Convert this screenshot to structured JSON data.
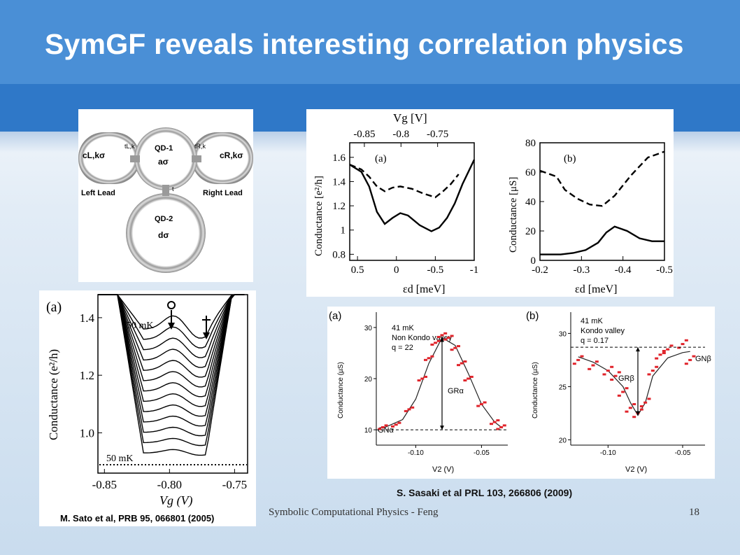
{
  "slide": {
    "title": "SymGF reveals interesting correlation physics",
    "footer_text": "Symbolic Computational Physics - Feng",
    "page_number": "18",
    "citation_sasaki": "S. Sasaki et al PRL 103, 266806 (2009)",
    "citation_sato": "M. Sato et al, PRB 95, 066801 (2005)"
  },
  "diagram": {
    "qd1_label": "QD-1",
    "qd1_op": "aσ",
    "qd2_label": "QD-2",
    "qd2_op": "dσ",
    "left_op": "cL,kσ",
    "right_op": "cR,kσ",
    "left_lead": "Left Lead",
    "right_lead": "Right Lead",
    "t_left": "tL,k",
    "t_right": "tR,k",
    "t_inter": "t"
  },
  "chart_data": [
    {
      "type": "line",
      "panel": "(a)",
      "xlabel": "εd [meV]",
      "ylabel": "Conductance [e²/h]",
      "top_axis_label": "Vg [V]",
      "top_ticks": [
        "-0.85",
        "-0.8",
        "-0.75"
      ],
      "x_ticks": [
        "0.5",
        "0",
        "-0.5",
        "-1"
      ],
      "y_ticks": [
        "0.8",
        "1",
        "1.2",
        "1.4",
        "1.6"
      ],
      "xlim": [
        0.6,
        -1.0
      ],
      "ylim": [
        0.75,
        1.72
      ],
      "series": [
        {
          "style": "solid",
          "x": [
            0.6,
            0.45,
            0.35,
            0.25,
            0.15,
            0.05,
            -0.05,
            -0.15,
            -0.3,
            -0.45,
            -0.55,
            -0.65,
            -0.75,
            -0.85,
            -1.0
          ],
          "y": [
            1.54,
            1.48,
            1.36,
            1.15,
            1.05,
            1.1,
            1.14,
            1.12,
            1.04,
            0.99,
            1.02,
            1.1,
            1.22,
            1.38,
            1.58
          ]
        },
        {
          "style": "dashed",
          "x": [
            0.6,
            0.45,
            0.35,
            0.25,
            0.15,
            0.05,
            -0.05,
            -0.2,
            -0.35,
            -0.5,
            -0.6,
            -0.7,
            -0.8
          ],
          "y": [
            1.54,
            1.5,
            1.44,
            1.36,
            1.32,
            1.35,
            1.36,
            1.34,
            1.3,
            1.27,
            1.32,
            1.38,
            1.46
          ]
        }
      ]
    },
    {
      "type": "line",
      "panel": "(b)",
      "xlabel": "εd [meV]",
      "ylabel": "Conductance [μS]",
      "x_ticks": [
        "-0.2",
        "-0.3",
        "-0.4",
        "-0.5"
      ],
      "y_ticks": [
        "0",
        "20",
        "40",
        "60",
        "80"
      ],
      "xlim": [
        -0.2,
        -0.5
      ],
      "ylim": [
        0,
        80
      ],
      "series": [
        {
          "style": "solid",
          "x": [
            -0.2,
            -0.25,
            -0.28,
            -0.31,
            -0.34,
            -0.36,
            -0.38,
            -0.41,
            -0.44,
            -0.47,
            -0.5
          ],
          "y": [
            4,
            4,
            5,
            7,
            12,
            19,
            23,
            20,
            15,
            13,
            13
          ]
        },
        {
          "style": "dashed",
          "x": [
            -0.2,
            -0.22,
            -0.24,
            -0.26,
            -0.29,
            -0.32,
            -0.35,
            -0.38,
            -0.42,
            -0.46,
            -0.5
          ],
          "y": [
            61,
            59,
            57,
            48,
            42,
            38,
            37,
            44,
            58,
            70,
            74
          ]
        }
      ]
    },
    {
      "type": "line",
      "panel": "(a)",
      "xlabel": "Vg (V)",
      "ylabel": "Conductance (e²/h)",
      "x_ticks": [
        "-0.85",
        "-0.80",
        "-0.75"
      ],
      "y_ticks": [
        "1.0",
        "1.2",
        "1.4"
      ],
      "xlim": [
        -0.855,
        -0.74
      ],
      "ylim": [
        0.86,
        1.48
      ],
      "annotations": [
        "750 mK",
        "50 mK"
      ],
      "series_count": 13
    },
    {
      "type": "scatter",
      "panel": "(a)",
      "text": [
        "41 mK",
        "Non Kondo valley",
        "q = 22"
      ],
      "xlabel": "V2 (V)",
      "ylabel": "Conductance (µS)",
      "x_ticks": [
        "-0.10",
        "-0.05"
      ],
      "y_ticks": [
        "10",
        "20",
        "30"
      ],
      "xlim": [
        -0.13,
        -0.03
      ],
      "ylim": [
        7,
        33
      ],
      "labels": [
        "GRα",
        "GNα"
      ],
      "series": [
        {
          "name": "data",
          "x": [
            -0.125,
            -0.115,
            -0.105,
            -0.095,
            -0.09,
            -0.085,
            -0.08,
            -0.075,
            -0.07,
            -0.065,
            -0.06,
            -0.05,
            -0.04,
            -0.035
          ],
          "y": [
            10.5,
            11,
            14,
            20,
            24,
            27,
            28.5,
            28,
            26,
            23,
            20,
            15,
            11.5,
            10.5
          ]
        },
        {
          "name": "fit",
          "x": [
            -0.125,
            -0.11,
            -0.1,
            -0.09,
            -0.08,
            -0.07,
            -0.06,
            -0.05,
            -0.04,
            -0.035
          ],
          "y": [
            10.3,
            12,
            16,
            23,
            28,
            26.5,
            21,
            15,
            11.5,
            10.5
          ]
        }
      ]
    },
    {
      "type": "scatter",
      "panel": "(b)",
      "text": [
        "41 mK",
        "Kondo valley",
        "q = 0.17"
      ],
      "xlabel": "V2 (V)",
      "ylabel": "Conductance (µS)",
      "x_ticks": [
        "-0.10",
        "-0.05"
      ],
      "y_ticks": [
        "20",
        "25",
        "30"
      ],
      "xlim": [
        -0.125,
        -0.035
      ],
      "ylim": [
        19.5,
        32
      ],
      "labels": [
        "GRβ",
        "GNβ"
      ],
      "series": [
        {
          "name": "data",
          "x": [
            -0.12,
            -0.11,
            -0.1,
            -0.095,
            -0.09,
            -0.085,
            -0.08,
            -0.075,
            -0.07,
            -0.065,
            -0.06,
            -0.05,
            -0.045
          ],
          "y": [
            27.5,
            27,
            26.5,
            26,
            24.5,
            23,
            22.5,
            23.5,
            26.5,
            28,
            28.5,
            29,
            27.5
          ]
        },
        {
          "name": "fit",
          "x": [
            -0.12,
            -0.11,
            -0.1,
            -0.09,
            -0.085,
            -0.08,
            -0.075,
            -0.07,
            -0.06,
            -0.05,
            -0.045
          ],
          "y": [
            27.8,
            27.3,
            26.5,
            25,
            23.5,
            22.3,
            23.5,
            26,
            27.7,
            28.2,
            28.3
          ]
        }
      ]
    }
  ]
}
